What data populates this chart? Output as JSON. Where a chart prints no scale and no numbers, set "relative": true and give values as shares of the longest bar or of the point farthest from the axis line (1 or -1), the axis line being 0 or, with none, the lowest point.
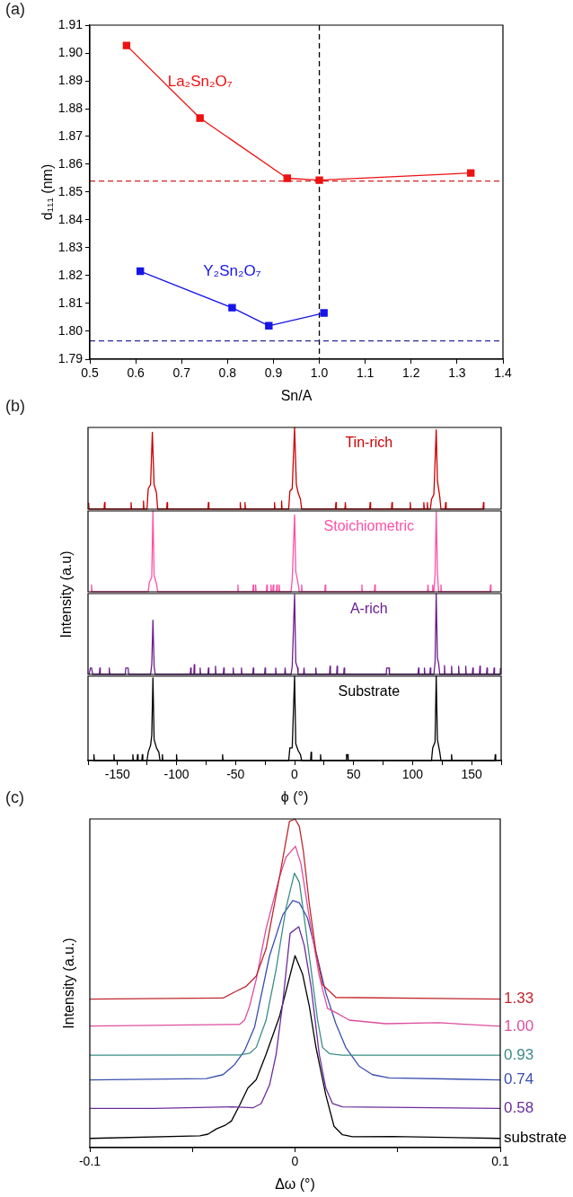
{
  "chart_data": [
    {
      "type": "line",
      "marker": "square",
      "xlabel": "Sn/A",
      "ylabel": "d₁₁₁ (nm)",
      "annotations": [
        "(a)"
      ],
      "xlim": [
        0.5,
        1.4
      ],
      "xticks": [
        0.5,
        0.6,
        0.7,
        0.8,
        0.9,
        {
          "value": 1,
          "label": "1.0"
        },
        1.1,
        1.2,
        1.3,
        1.4
      ],
      "ylim": [
        1.79,
        1.91
      ],
      "yticks": [
        1.79,
        {
          "value": 1.8,
          "label": "1.80"
        },
        1.81,
        1.82,
        1.83,
        1.84,
        1.85,
        1.86,
        1.87,
        1.88,
        1.89,
        {
          "value": 1.9,
          "label": "1.90"
        },
        1.91
      ],
      "ref_lines": [
        {
          "axis": "x",
          "value": 1,
          "color": "#000000",
          "line_style": "dashed"
        },
        {
          "axis": "y",
          "value": 1.854,
          "color": "#d42020",
          "line_style": "dashed"
        },
        {
          "axis": "y",
          "value": 1.7966,
          "color": "#2a2a9a",
          "line_style": "dashed"
        }
      ],
      "series": [
        {
          "name": "La₂Sn₂O₇",
          "color": "#ee1111",
          "x": [
            0.58,
            0.74,
            0.93,
            1.0,
            1.33
          ],
          "values": [
            1.9027,
            1.8766,
            1.855,
            1.8543,
            1.8569
          ]
        },
        {
          "name": "Y₂Sn₂O₇",
          "color": "#1515e8",
          "x": [
            0.61,
            0.81,
            0.89,
            1.01
          ],
          "values": [
            1.8216,
            1.8085,
            1.802,
            1.8066
          ]
        }
      ]
    },
    {
      "type": "line",
      "relative": true,
      "tick_labels": false,
      "ylabel": "Intensity (a.u)",
      "annotations": [
        "(b)"
      ],
      "xlim": [
        -175,
        175
      ],
      "series": [
        {
          "name": "Tin-rich",
          "color": "#cc0000",
          "x": [
            -174.5,
            -174.1,
            -161.4,
            -161,
            -160.6,
            -138.9,
            -138.5,
            -138.1,
            -128.4,
            -128,
            -127.6,
            -125,
            -124,
            -122,
            -120.5,
            -119,
            -117,
            -116,
            -108.4,
            -108,
            -107.6,
            -73.4,
            -73,
            -72.6,
            -46.4,
            -46,
            -45.6,
            -42.4,
            -42,
            -41.6,
            -17.4,
            -17,
            -16.6,
            -11.4,
            -11,
            -10.6,
            -5,
            -4,
            -2,
            0,
            1.5,
            3,
            5,
            6,
            34.6,
            35,
            35.4,
            42.6,
            43,
            43.4,
            63.6,
            64,
            64.4,
            82.1,
            82.5,
            82.9,
            97.6,
            98,
            98.4,
            109.1,
            109.5,
            109.9,
            112.1,
            112.5,
            112.9,
            115,
            116,
            118,
            120,
            121,
            123,
            124,
            127.6,
            128,
            128.4,
            159.6,
            160,
            160.4
          ],
          "values": [
            0.08,
            0,
            0,
            0.08,
            0,
            0,
            0.08,
            0,
            0,
            0.1,
            0,
            0,
            0.25,
            0.3,
            0.94,
            0.3,
            0.2,
            0,
            0,
            0.08,
            0,
            0,
            0.08,
            0,
            0,
            0.08,
            0,
            0,
            0.08,
            0,
            0,
            0.08,
            0,
            0,
            0.1,
            0,
            0,
            0.22,
            0.25,
            1,
            0.3,
            0.2,
            0.12,
            0,
            0,
            0.08,
            0,
            0,
            0.08,
            0,
            0,
            0.08,
            0,
            0,
            0.08,
            0,
            0,
            0.08,
            0,
            0,
            0.08,
            0,
            0,
            0.08,
            0,
            0,
            0.12,
            0.18,
            0.97,
            0.35,
            0.15,
            0,
            0,
            0.08,
            0,
            0,
            0.08,
            0
          ]
        }
      ]
    },
    {
      "type": "line",
      "relative": true,
      "tick_labels": false,
      "xlim": [
        -175,
        175
      ],
      "series": [
        {
          "name": "Stoichiometric",
          "color": "#ff4fa7",
          "x": [
            -172.4,
            -172,
            -171.6,
            -124,
            -123,
            -121,
            -120,
            -119,
            -117,
            -116,
            -48.4,
            -48,
            -47.6,
            -35.4,
            -35,
            -34.6,
            -33.4,
            -33,
            -32.6,
            -23.9,
            -23.5,
            -23.1,
            -20.4,
            -20,
            -19.6,
            -18.4,
            -18,
            -17.6,
            -15.4,
            -15,
            -14.6,
            -13.4,
            -13,
            -12.6,
            -3,
            -2,
            0,
            1,
            3,
            4,
            5.6,
            6,
            6.4,
            25.6,
            26,
            26.4,
            56.6,
            57,
            57.4,
            67.6,
            68,
            68.4,
            112.6,
            113,
            113.4,
            116.6,
            117,
            117.4,
            118,
            119,
            120,
            121,
            122,
            123.6,
            124,
            124.4,
            165.6,
            166,
            166.4
          ],
          "values": [
            0,
            0.085,
            0,
            0,
            0.12,
            0.18,
            1,
            0.2,
            0.1,
            0,
            0,
            0.085,
            0,
            0,
            0.085,
            0,
            0,
            0.085,
            0,
            0,
            0.085,
            0,
            0,
            0.085,
            0,
            0,
            0.085,
            0,
            0,
            0.085,
            0,
            0,
            0.085,
            0,
            0,
            0.15,
            0.95,
            0.25,
            0.1,
            0,
            0,
            0.085,
            0,
            0,
            0.085,
            0,
            0,
            0.085,
            0,
            0,
            0.085,
            0,
            0,
            0.085,
            0,
            0,
            0.085,
            0,
            0,
            0.2,
            0.99,
            0.25,
            0,
            0,
            0.085,
            0,
            0,
            0.085,
            0
          ]
        }
      ]
    },
    {
      "type": "line",
      "relative": true,
      "tick_labels": false,
      "xlim": [
        -175,
        175
      ],
      "series": [
        {
          "name": "A-rich",
          "color": "#6b1d8f",
          "x": [
            -174,
            -173,
            -172,
            -171,
            -165.4,
            -165,
            -164.6,
            -157.4,
            -157,
            -156.6,
            -143.4,
            -143,
            -141,
            -140.6,
            -122,
            -121,
            -120,
            -119,
            -118,
            -88.4,
            -88,
            -87.6,
            -85.4,
            -85,
            -84.6,
            -80.4,
            -80,
            -79.6,
            -73.4,
            -73,
            -72.6,
            -67.4,
            -67,
            -66.6,
            -60.4,
            -60,
            -59.6,
            -52.4,
            -52,
            -51.6,
            -45.4,
            -45,
            -44.6,
            -35.4,
            -35,
            -34.6,
            -25.4,
            -25,
            -24.6,
            -16.4,
            -16,
            -15.6,
            -8.4,
            -8,
            -7.6,
            -3,
            -2,
            0,
            1,
            2.5,
            3,
            7.6,
            8,
            8.4,
            17.6,
            18,
            18.4,
            29.6,
            30,
            30.4,
            35.6,
            36,
            36.4,
            41.6,
            42,
            42.4,
            77.6,
            78,
            80,
            80.4,
            104.6,
            105,
            105.4,
            109.6,
            110,
            110.4,
            114.6,
            115,
            115.4,
            118,
            119,
            120,
            121,
            122,
            123,
            126.6,
            127,
            127.4,
            132.6,
            133,
            133.4,
            138.6,
            139,
            139.4,
            144.6,
            145,
            145.4,
            150.6,
            151,
            151.4,
            156.6,
            157,
            157.4,
            162.6,
            163,
            163.4,
            168.6,
            169,
            169.4,
            174.1,
            174.5
          ],
          "values": [
            0,
            0.08,
            0.08,
            0,
            0,
            0.08,
            0,
            0,
            0.08,
            0,
            0,
            0.08,
            0.08,
            0,
            0,
            0.12,
            0.67,
            0.1,
            0,
            0,
            0.08,
            0,
            0,
            0.12,
            0,
            0,
            0.08,
            0,
            0,
            0.08,
            0,
            0,
            0.1,
            0,
            0,
            0.08,
            0,
            0,
            0.08,
            0,
            0,
            0.08,
            0,
            0,
            0.08,
            0,
            0,
            0.08,
            0,
            0,
            0.08,
            0,
            0,
            0.08,
            0,
            0,
            0.1,
            0.99,
            0.15,
            0.08,
            0,
            0,
            0.08,
            0,
            0,
            0.08,
            0,
            0,
            0.1,
            0,
            0,
            0.1,
            0,
            0,
            0.08,
            0,
            0,
            0.08,
            0.08,
            0,
            0,
            0.08,
            0,
            0,
            0.08,
            0,
            0,
            0.08,
            0,
            0,
            0.15,
            1,
            0.2,
            0.14,
            0,
            0,
            0.11,
            0,
            0,
            0.1,
            0,
            0,
            0.1,
            0,
            0,
            0.1,
            0,
            0,
            0.08,
            0,
            0,
            0.1,
            0,
            0,
            0.08,
            0,
            0,
            0.08,
            0,
            0,
            0.08
          ]
        }
      ]
    },
    {
      "type": "line",
      "relative": true,
      "tick_labels": "x",
      "xlabel": "ϕ (°)",
      "xlim": [
        -175,
        175
      ],
      "xticks": [
        {
          "value": -175,
          "label": null
        },
        -150,
        {
          "value": -125,
          "label": null
        },
        -100,
        {
          "value": -75,
          "label": null
        },
        -50,
        {
          "value": -25,
          "label": null
        },
        0,
        {
          "value": 25,
          "label": null
        },
        50,
        {
          "value": 75,
          "label": null
        },
        100,
        {
          "value": 125,
          "label": null
        },
        150,
        {
          "value": 175,
          "label": null
        }
      ],
      "series": [
        {
          "name": "Substrate",
          "color": "#000000",
          "x": [
            -170.4,
            -170,
            -169.6,
            -153.4,
            -153,
            -152.6,
            -137.4,
            -137,
            -136.6,
            -133.4,
            -133,
            -132.6,
            -129.4,
            -129,
            -128.6,
            -125,
            -124,
            -122,
            -121,
            -120,
            -119,
            -117,
            -115,
            -114,
            -112.4,
            -112,
            -111.6,
            -100.4,
            -100,
            -99.6,
            -61.4,
            -61,
            -60.6,
            -5,
            -4,
            -2,
            0,
            1,
            3,
            5,
            6,
            13.6,
            14,
            14.4,
            21.6,
            22,
            22.4,
            43.6,
            44,
            45,
            45.4,
            116,
            117,
            119,
            120,
            121,
            123,
            124,
            132.6,
            133,
            133.4,
            169.6,
            170,
            170.4
          ],
          "values": [
            0,
            0.07,
            0,
            0,
            0.07,
            0,
            0,
            0.07,
            0,
            0,
            0.07,
            0,
            0,
            0.07,
            0,
            0,
            0.1,
            0.18,
            0.3,
            0.98,
            0.25,
            0.15,
            0.1,
            0,
            0,
            0.07,
            0,
            0,
            0.07,
            0,
            0,
            0.07,
            0,
            0,
            0.15,
            0.15,
            1,
            0.2,
            0.12,
            0.07,
            0,
            0,
            0.1,
            0,
            0,
            0.07,
            0,
            0,
            0.07,
            0.07,
            0,
            0,
            0.15,
            0.22,
            1,
            0.25,
            0.1,
            0,
            0,
            0.07,
            0,
            0,
            0.07,
            0
          ]
        }
      ]
    },
    {
      "type": "line",
      "relative": true,
      "tick_labels": "x",
      "xlabel": "Δω (°)",
      "ylabel": "Intensity (a.u.)",
      "annotations": [
        "(c)"
      ],
      "xlim": [
        -0.1,
        0.1
      ],
      "xticks": [
        -0.1,
        {
          "value": -0.05,
          "label": null
        },
        0,
        {
          "value": 0.05,
          "label": null
        },
        0.1
      ],
      "series": [
        {
          "name": "1.33",
          "color": "#c0282d",
          "x": [
            -0.1,
            -0.0351,
            -0.0286,
            -0.0238,
            -0.0189,
            -0.0141,
            -0.0076,
            -0.0027,
            0,
            0.0021,
            0.004,
            0.007,
            0.0102,
            0.0134,
            0.0199,
            0.1
          ],
          "values": [
            0.452,
            0.455,
            0.476,
            0.491,
            0.522,
            0.605,
            0.822,
            0.993,
            1,
            0.977,
            0.905,
            0.739,
            0.595,
            0.496,
            0.457,
            0.452
          ]
        },
        {
          "name": "1.00",
          "color": "#dd4f9e",
          "x": [
            -0.1,
            -0.027,
            -0.0246,
            -0.0222,
            -0.0189,
            -0.0141,
            -0.0076,
            -0.0044,
            0.0002,
            0.0029,
            0.007,
            0.0118,
            0.0158,
            0.0207,
            0.0264,
            0.0441,
            0.07,
            0.1
          ],
          "values": [
            0.37,
            0.375,
            0.388,
            0.429,
            0.512,
            0.667,
            0.822,
            0.884,
            0.917,
            0.863,
            0.698,
            0.522,
            0.424,
            0.408,
            0.388,
            0.377,
            0.38,
            0.369
          ]
        },
        {
          "name": "0.93",
          "color": "#3a8c86",
          "x": [
            -0.1,
            -0.027,
            -0.0221,
            -0.0189,
            -0.0141,
            -0.0092,
            -0.0044,
            -0.0003,
            0.0021,
            0.0045,
            0.0078,
            0.011,
            0.0134,
            0.0167,
            0.0231,
            0.1
          ],
          "values": [
            0.281,
            0.282,
            0.287,
            0.305,
            0.388,
            0.543,
            0.729,
            0.835,
            0.807,
            0.698,
            0.543,
            0.388,
            0.305,
            0.286,
            0.281,
            0.281
          ]
        },
        {
          "name": "0.74",
          "color": "#3a4fb0",
          "x": [
            -0.1,
            -0.0432,
            -0.0351,
            -0.0294,
            -0.0246,
            -0.0197,
            -0.0124,
            -0.006,
            -0.0011,
            0.0021,
            0.0061,
            0.0108,
            0.015,
            0.0199,
            0.0247,
            0.0312,
            0.0377,
            0.0458,
            0.1
          ],
          "values": [
            0.206,
            0.21,
            0.222,
            0.253,
            0.295,
            0.367,
            0.584,
            0.708,
            0.752,
            0.745,
            0.698,
            0.58,
            0.471,
            0.377,
            0.305,
            0.248,
            0.222,
            0.212,
            0.206
          ]
        },
        {
          "name": "0.58",
          "color": "#6a2d9a",
          "x": [
            -0.1,
            -0.069,
            -0.0302,
            -0.0205,
            -0.0165,
            -0.0124,
            -0.0092,
            -0.006,
            -0.0024,
            0.0018,
            0.0045,
            0.0078,
            0.0118,
            0.015,
            0.0183,
            0.0231,
            0.1
          ],
          "values": [
            0.119,
            0.119,
            0.124,
            0.121,
            0.134,
            0.191,
            0.284,
            0.44,
            0.652,
            0.672,
            0.615,
            0.491,
            0.284,
            0.181,
            0.134,
            0.124,
            0.119
          ]
        },
        {
          "name": "substrate",
          "color": "#000000",
          "x": [
            -0.1,
            -0.0464,
            -0.0424,
            -0.0383,
            -0.0343,
            -0.031,
            -0.027,
            -0.023,
            -0.0189,
            -0.0141,
            -0.0076,
            0,
            0.0037,
            0.007,
            0.0102,
            0.015,
            0.019,
            0.0231,
            0.028,
            0.0474,
            0.1
          ],
          "values": [
            0.028,
            0.036,
            0.041,
            0.057,
            0.067,
            0.081,
            0.129,
            0.181,
            0.207,
            0.284,
            0.398,
            0.584,
            0.527,
            0.429,
            0.305,
            0.16,
            0.065,
            0.039,
            0.033,
            0.034,
            0.028
          ]
        }
      ]
    }
  ]
}
